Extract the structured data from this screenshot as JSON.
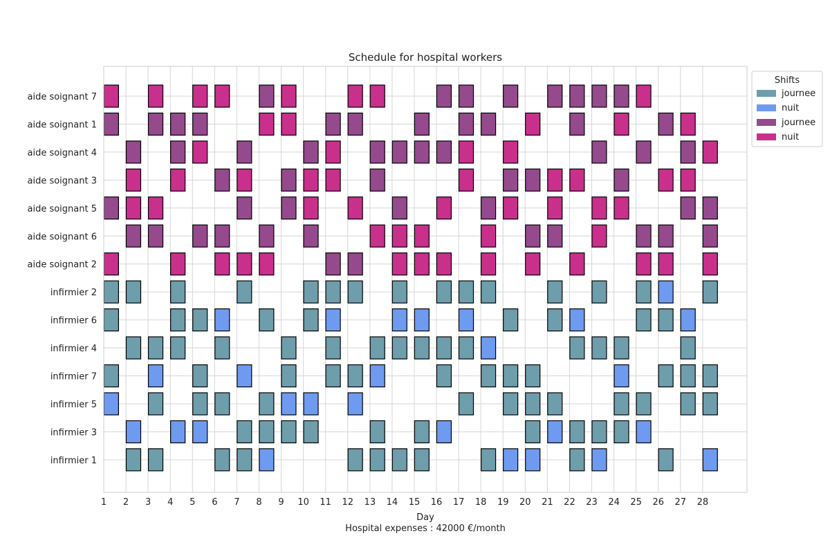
{
  "chart_data": {
    "type": "heatmap",
    "title": "Schedule for hospital workers",
    "xlabel": "Day",
    "footer": "Hospital expenses : 42000 €/month",
    "days": [
      1,
      2,
      3,
      4,
      5,
      6,
      7,
      8,
      9,
      10,
      11,
      12,
      13,
      14,
      15,
      16,
      17,
      18,
      19,
      20,
      21,
      22,
      23,
      24,
      25,
      26,
      27,
      28
    ],
    "xlim": [
      1,
      30
    ],
    "grid": true,
    "legend": {
      "title": "Shifts",
      "placement": "outside-top-right",
      "entries": [
        {
          "label": "journee",
          "key": "inf_journee"
        },
        {
          "label": "nuit",
          "key": "inf_nuit"
        },
        {
          "label": "journee",
          "key": "aide_journee"
        },
        {
          "label": "nuit",
          "key": "aide_nuit"
        }
      ]
    },
    "colors": {
      "inf_journee": "#6e9dac",
      "inf_nuit": "#6e9af0",
      "aide_journee": "#944a8c",
      "aide_nuit": "#c8308c"
    },
    "workers": [
      {
        "name": "aide soignant 7",
        "type": "aide",
        "shifts": {
          "1": "N",
          "3": "N",
          "5": "N",
          "6": "N",
          "8": "J",
          "9": "N",
          "12": "N",
          "13": "N",
          "16": "J",
          "17": "J",
          "19": "J",
          "21": "J",
          "22": "J",
          "23": "J",
          "24": "J",
          "25": "N"
        }
      },
      {
        "name": "aide soignant 1",
        "type": "aide",
        "shifts": {
          "1": "J",
          "3": "J",
          "4": "J",
          "5": "J",
          "8": "N",
          "9": "N",
          "11": "J",
          "12": "J",
          "15": "J",
          "17": "J",
          "18": "J",
          "20": "N",
          "22": "J",
          "24": "N",
          "26": "J",
          "27": "N"
        }
      },
      {
        "name": "aide soignant 4",
        "type": "aide",
        "shifts": {
          "2": "J",
          "4": "J",
          "5": "N",
          "7": "J",
          "10": "J",
          "11": "N",
          "13": "J",
          "14": "J",
          "15": "J",
          "16": "J",
          "17": "N",
          "19": "N",
          "23": "J",
          "25": "J",
          "27": "J",
          "28": "N"
        }
      },
      {
        "name": "aide soignant 3",
        "type": "aide",
        "shifts": {
          "2": "N",
          "4": "N",
          "6": "J",
          "7": "N",
          "9": "J",
          "10": "N",
          "11": "N",
          "13": "J",
          "17": "N",
          "19": "J",
          "20": "J",
          "21": "N",
          "22": "N",
          "24": "J",
          "26": "N",
          "27": "N"
        }
      },
      {
        "name": "aide soignant 5",
        "type": "aide",
        "shifts": {
          "1": "J",
          "2": "N",
          "3": "N",
          "7": "J",
          "9": "J",
          "10": "N",
          "12": "N",
          "14": "J",
          "16": "N",
          "18": "J",
          "19": "N",
          "21": "N",
          "23": "N",
          "24": "N",
          "27": "J",
          "28": "J"
        }
      },
      {
        "name": "aide soignant 6",
        "type": "aide",
        "shifts": {
          "2": "J",
          "3": "J",
          "5": "J",
          "6": "J",
          "8": "J",
          "10": "J",
          "13": "N",
          "14": "N",
          "15": "N",
          "18": "N",
          "20": "J",
          "21": "J",
          "23": "N",
          "25": "J",
          "26": "J",
          "28": "J"
        }
      },
      {
        "name": "aide soignant 2",
        "type": "aide",
        "shifts": {
          "1": "N",
          "4": "N",
          "6": "N",
          "7": "N",
          "8": "N",
          "11": "J",
          "12": "J",
          "14": "N",
          "15": "N",
          "16": "N",
          "18": "N",
          "20": "N",
          "22": "N",
          "25": "N",
          "26": "N",
          "28": "N"
        }
      },
      {
        "name": "infirmier 2",
        "type": "inf",
        "shifts": {
          "1": "J",
          "2": "J",
          "4": "J",
          "7": "J",
          "10": "J",
          "11": "J",
          "12": "J",
          "14": "J",
          "16": "J",
          "17": "J",
          "18": "J",
          "21": "J",
          "23": "J",
          "25": "J",
          "26": "N",
          "28": "J"
        }
      },
      {
        "name": "infirmier 6",
        "type": "inf",
        "shifts": {
          "1": "J",
          "4": "J",
          "5": "J",
          "6": "N",
          "8": "J",
          "10": "J",
          "11": "N",
          "14": "N",
          "15": "N",
          "17": "N",
          "19": "J",
          "21": "J",
          "22": "N",
          "25": "J",
          "26": "J",
          "27": "N"
        }
      },
      {
        "name": "infirmier 4",
        "type": "inf",
        "shifts": {
          "2": "J",
          "3": "J",
          "4": "J",
          "6": "J",
          "9": "J",
          "11": "J",
          "13": "J",
          "14": "J",
          "15": "J",
          "16": "J",
          "17": "J",
          "18": "N",
          "22": "J",
          "23": "J",
          "24": "J",
          "27": "J"
        }
      },
      {
        "name": "infirmier 7",
        "type": "inf",
        "shifts": {
          "1": "J",
          "3": "N",
          "5": "J",
          "7": "N",
          "9": "J",
          "11": "J",
          "12": "J",
          "13": "N",
          "16": "J",
          "18": "J",
          "19": "J",
          "20": "J",
          "24": "N",
          "26": "J",
          "27": "J",
          "28": "J"
        }
      },
      {
        "name": "infirmier 5",
        "type": "inf",
        "shifts": {
          "1": "N",
          "3": "J",
          "5": "J",
          "6": "J",
          "8": "J",
          "9": "N",
          "10": "N",
          "12": "N",
          "17": "J",
          "19": "J",
          "20": "J",
          "21": "J",
          "24": "J",
          "25": "J",
          "27": "J",
          "28": "J"
        }
      },
      {
        "name": "infirmier 3",
        "type": "inf",
        "shifts": {
          "2": "N",
          "4": "N",
          "5": "N",
          "7": "J",
          "8": "J",
          "9": "J",
          "10": "J",
          "13": "J",
          "15": "J",
          "16": "N",
          "20": "J",
          "21": "N",
          "22": "J",
          "23": "J",
          "24": "J",
          "25": "N"
        }
      },
      {
        "name": "infirmier 1",
        "type": "inf",
        "shifts": {
          "2": "J",
          "3": "J",
          "6": "J",
          "7": "J",
          "8": "N",
          "12": "J",
          "13": "J",
          "14": "J",
          "15": "J",
          "18": "J",
          "19": "N",
          "20": "N",
          "22": "J",
          "23": "N",
          "26": "J",
          "28": "N"
        }
      }
    ]
  }
}
